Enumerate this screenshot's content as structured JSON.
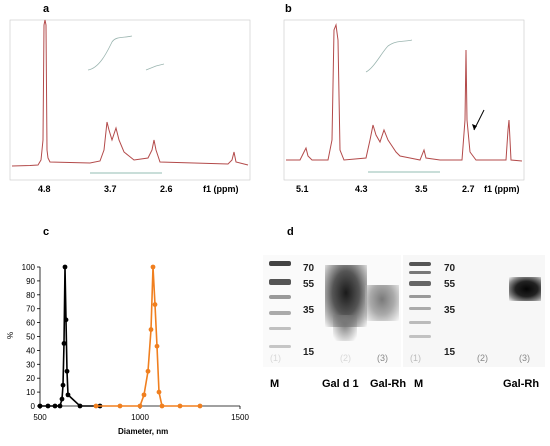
{
  "panels": {
    "a": {
      "letter": "a",
      "xticks": [
        "4.8",
        "3.7",
        "2.6"
      ],
      "unit": "f1 (ppm)"
    },
    "b": {
      "letter": "b",
      "xticks": [
        "5.1",
        "4.3",
        "3.5",
        "2.7"
      ],
      "unit": "f1 (ppm)"
    },
    "c": {
      "letter": "c"
    },
    "d": {
      "letter": "d"
    }
  },
  "chart_data": [
    {
      "type": "line",
      "panel": "c",
      "xlabel": "Diameter, nm",
      "ylabel": "%",
      "xlim": [
        500,
        1500
      ],
      "ylim": [
        0,
        100
      ],
      "xticks": [
        500,
        1000,
        1500
      ],
      "yticks": [
        0,
        10,
        20,
        30,
        40,
        50,
        60,
        70,
        80,
        90,
        100
      ],
      "grid": false,
      "series": [
        {
          "color": "#000000",
          "x": [
            500,
            540,
            575,
            600,
            610,
            615,
            620,
            625,
            630,
            635,
            640,
            700,
            800
          ],
          "y": [
            0,
            0,
            0,
            0,
            5,
            15,
            45,
            100,
            62,
            25,
            8,
            0,
            0
          ]
        },
        {
          "color": "#f07f1f",
          "x": [
            780,
            900,
            1000,
            1020,
            1040,
            1055,
            1065,
            1075,
            1085,
            1095,
            1110,
            1200,
            1300
          ],
          "y": [
            0,
            0,
            0,
            8,
            25,
            55,
            100,
            73,
            43,
            10,
            0,
            0,
            0
          ]
        }
      ]
    }
  ],
  "blot": {
    "markers": [
      "70",
      "55",
      "35",
      "15"
    ],
    "lanes": [
      "(1)",
      "(2)",
      "(3)"
    ],
    "bottom_left": [
      "M",
      "Gal d 1",
      "Gal-Rh"
    ],
    "bottom_right": [
      "M",
      "Gal-Rh"
    ]
  }
}
